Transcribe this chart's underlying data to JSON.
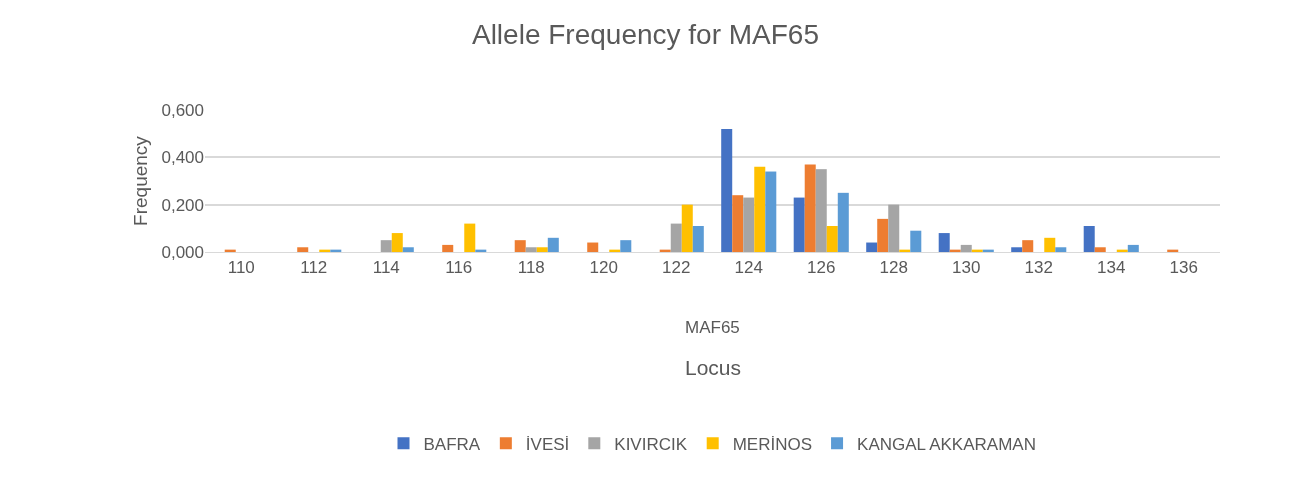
{
  "chart_data": {
    "type": "bar",
    "title": "Allele Frequency for MAF65",
    "xlabel": "Locus",
    "ylabel": "Frequency",
    "annotations": [
      "MAF65"
    ],
    "categories": [
      "110",
      "112",
      "114",
      "116",
      "118",
      "120",
      "122",
      "124",
      "126",
      "128",
      "130",
      "132",
      "134",
      "136"
    ],
    "series": [
      {
        "name": "BAFRA",
        "color": "#4472c4",
        "values": [
          0,
          0,
          0,
          0,
          0,
          0,
          0,
          0.52,
          0.23,
          0.04,
          0.08,
          0.02,
          0.11,
          0
        ]
      },
      {
        "name": "İVESİ",
        "color": "#ed7d31",
        "values": [
          0.01,
          0.02,
          0,
          0.03,
          0.05,
          0.04,
          0.01,
          0.24,
          0.37,
          0.14,
          0.01,
          0.05,
          0.02,
          0.01
        ]
      },
      {
        "name": "KIVIRCIK",
        "color": "#a5a5a5",
        "values": [
          0,
          0,
          0.05,
          0,
          0.02,
          0,
          0.12,
          0.23,
          0.35,
          0.2,
          0.03,
          0,
          0,
          0
        ]
      },
      {
        "name": "MERİNOS",
        "color": "#ffc000",
        "values": [
          0,
          0.01,
          0.08,
          0.12,
          0.02,
          0.01,
          0.2,
          0.36,
          0.11,
          0.01,
          0.01,
          0.06,
          0.01,
          0
        ]
      },
      {
        "name": "KANGAL AKKARAMAN",
        "color": "#5b9bd5",
        "values": [
          0,
          0.01,
          0.02,
          0.01,
          0.06,
          0.05,
          0.11,
          0.34,
          0.25,
          0.09,
          0.01,
          0.02,
          0.03,
          0
        ]
      }
    ],
    "ylim": [
      0,
      0.6
    ],
    "yticks": [
      {
        "value": 0,
        "label": "0,000"
      },
      {
        "value": 0.2,
        "label": "0,200"
      },
      {
        "value": 0.4,
        "label": "0,400"
      },
      {
        "value": 0.6,
        "label": "0,600"
      }
    ],
    "grid": "y",
    "legend": "bottom"
  }
}
